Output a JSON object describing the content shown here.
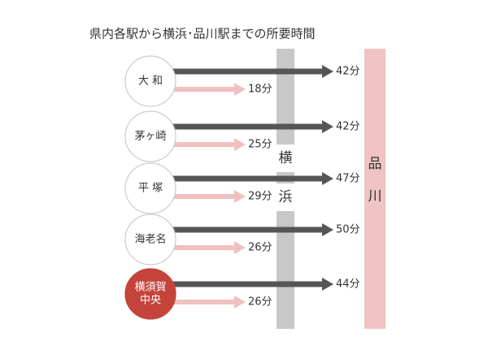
{
  "title": "県内各駅から横浜･品川駅までの所要時間",
  "yokohama": [
    "横",
    "浜"
  ],
  "shinagawa": [
    "品",
    "川"
  ],
  "stations": [
    {
      "name": [
        "大 和"
      ],
      "to_shinagawa": "42分",
      "to_yokohama": "18分",
      "highlight": false
    },
    {
      "name": [
        "茅ヶ崎"
      ],
      "to_shinagawa": "42分",
      "to_yokohama": "25分",
      "highlight": false
    },
    {
      "name": [
        "平 塚"
      ],
      "to_shinagawa": "47分",
      "to_yokohama": "29分",
      "highlight": false
    },
    {
      "name": [
        "海老名"
      ],
      "to_shinagawa": "50分",
      "to_yokohama": "26分",
      "highlight": false
    },
    {
      "name": [
        "横須賀",
        "中央"
      ],
      "to_shinagawa": "44分",
      "to_yokohama": "26分",
      "highlight": true
    }
  ]
}
